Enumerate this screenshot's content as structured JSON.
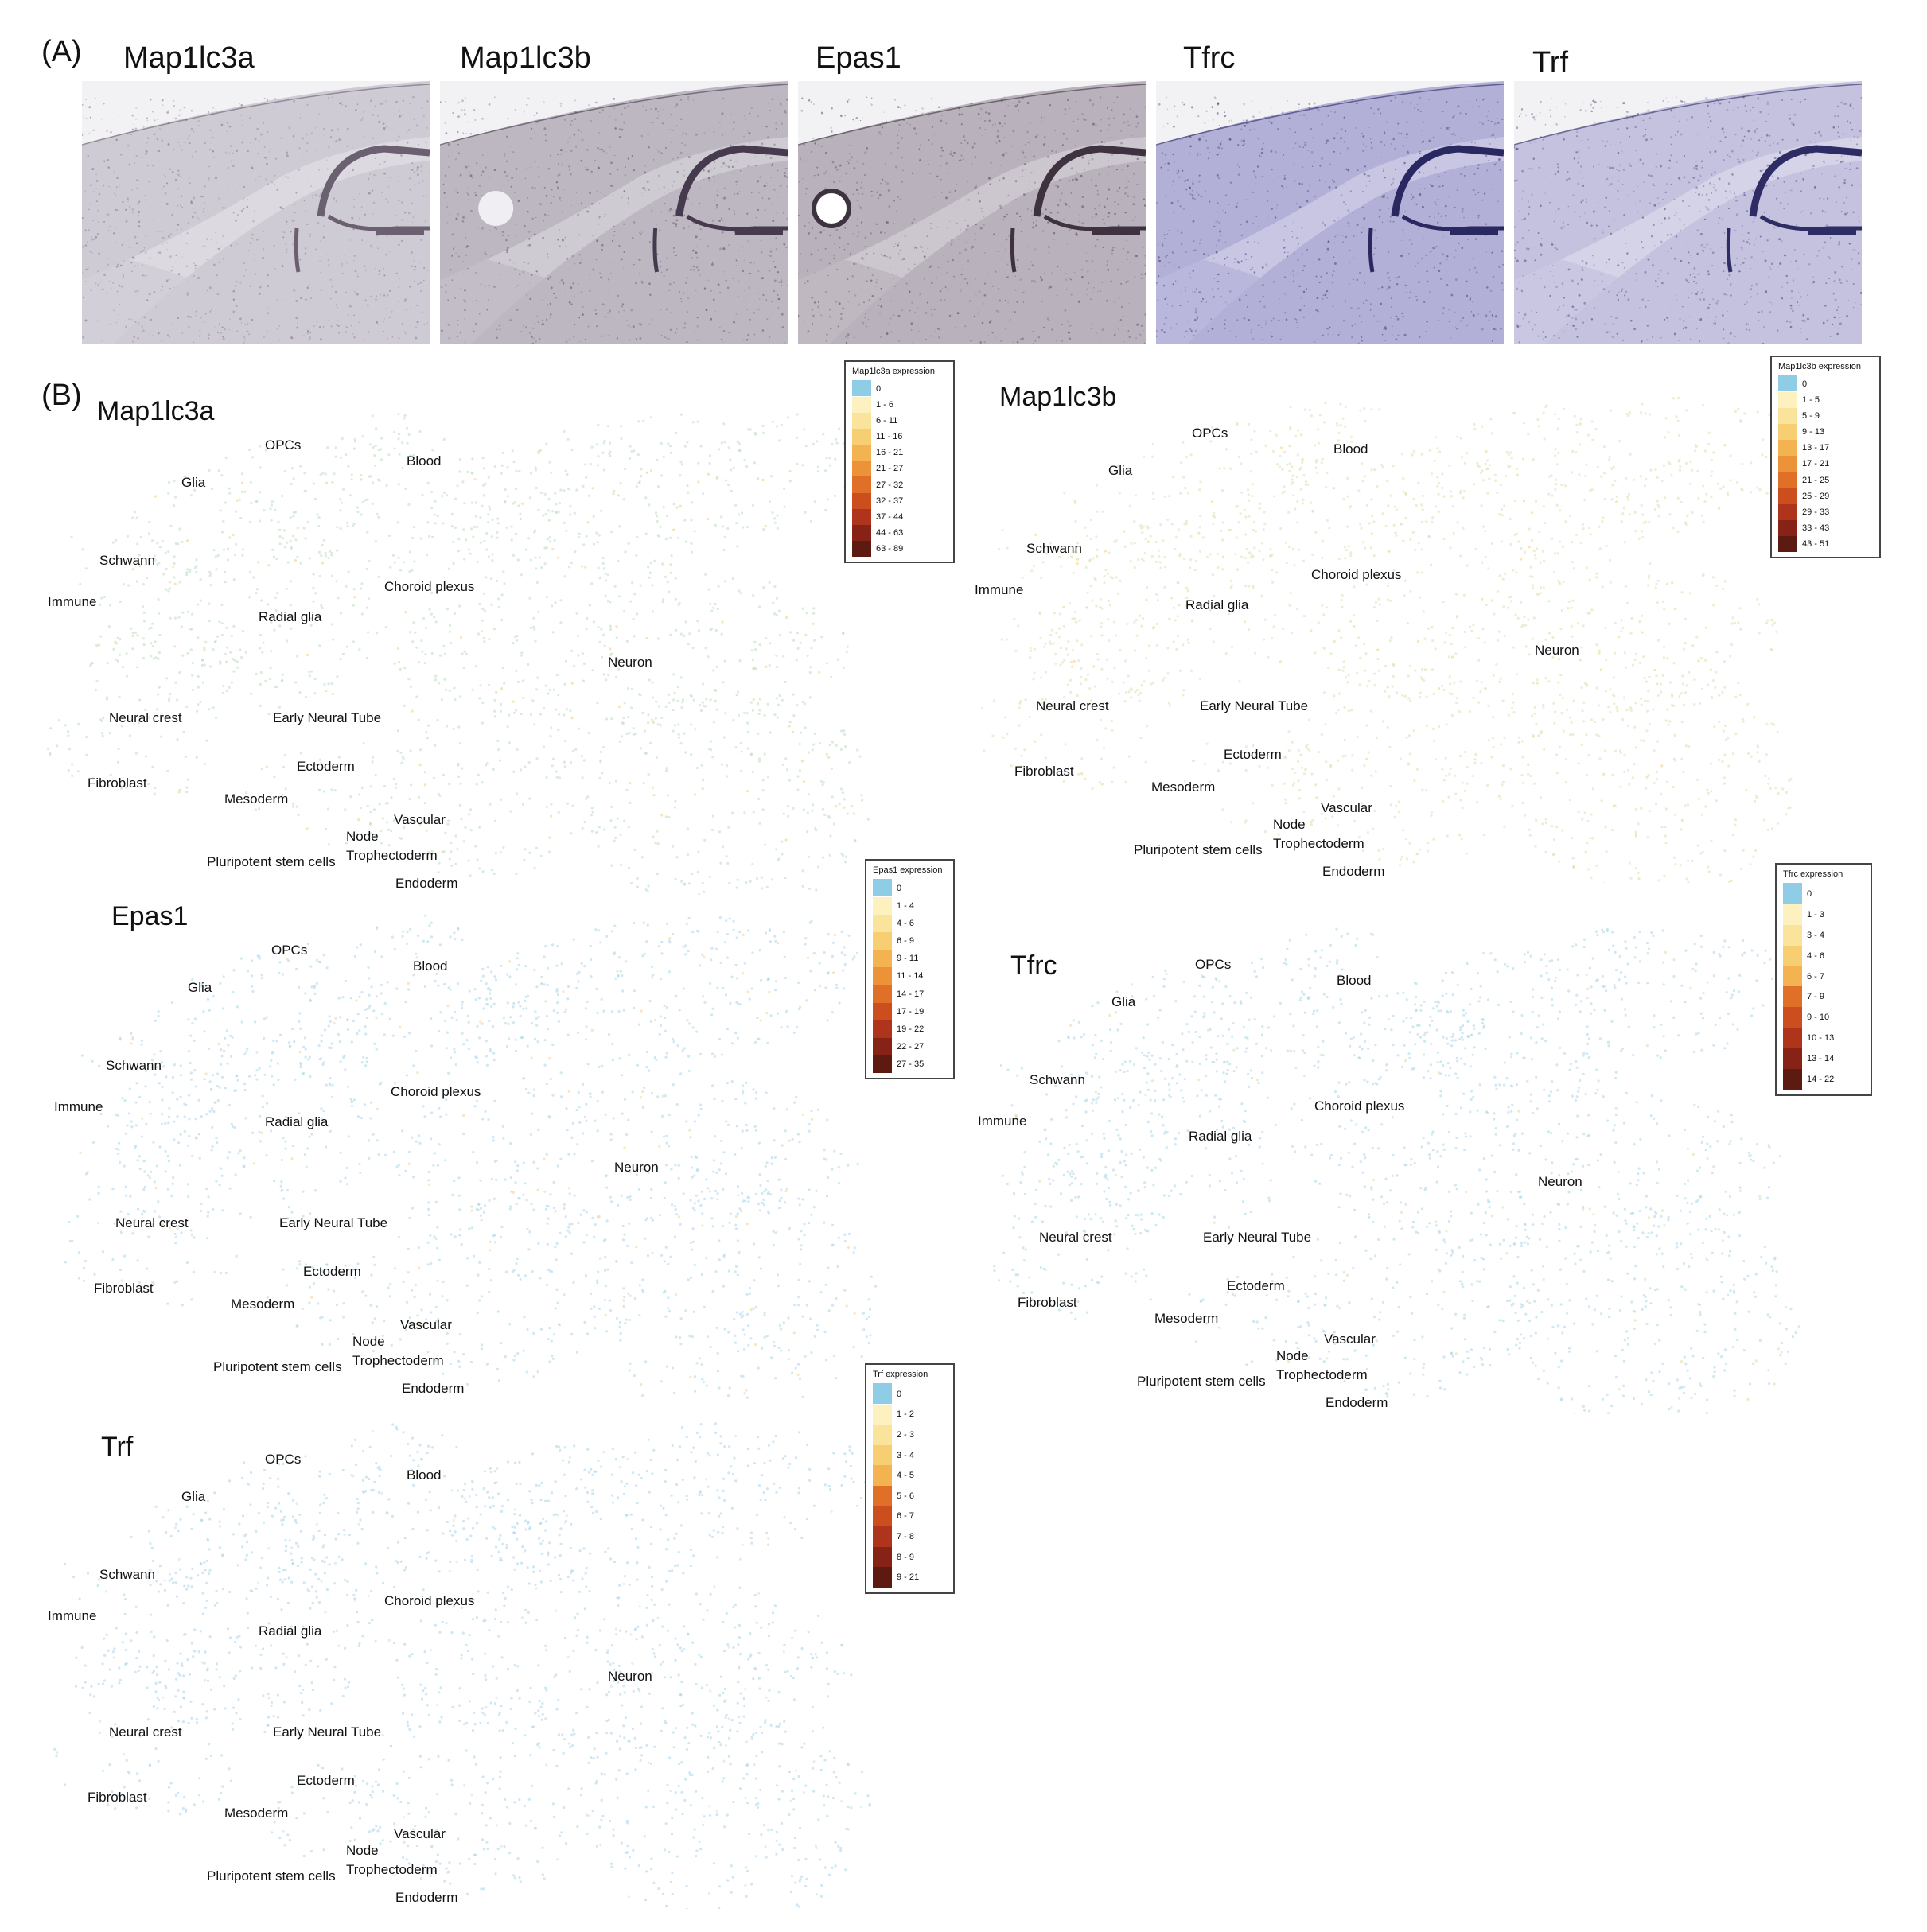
{
  "panel_a_label": "(A)",
  "panel_b_label": "(B)",
  "ish_images": [
    {
      "gene": "Map1lc3a",
      "tint": "#cfcbd4",
      "stain": "#6b6070"
    },
    {
      "gene": "Map1lc3b",
      "tint": "#bdb7c2",
      "stain": "#463a4e"
    },
    {
      "gene": "Epas1",
      "tint": "#b9b2bc",
      "stain": "#3e3240"
    },
    {
      "gene": "Tfrc",
      "tint": "#b3b0d8",
      "stain": "#2a2860"
    },
    {
      "gene": "Trf",
      "tint": "#c4c2de",
      "stain": "#2e2c64"
    }
  ],
  "cluster_labels": {
    "opcs": "OPCs",
    "blood": "Blood",
    "glia": "Glia",
    "schwann": "Schwann",
    "immune": "Immune",
    "choroid": "Choroid plexus",
    "radial": "Radial glia",
    "neuron": "Neuron",
    "neural_crest": "Neural crest",
    "early_tube": "Early Neural Tube",
    "ectoderm": "Ectoderm",
    "fibroblast": "Fibroblast",
    "mesoderm": "Mesoderm",
    "vascular": "Vascular",
    "node": "Node",
    "tropho": "Trophectoderm",
    "pluripotent": "Pluripotent stem cells",
    "endoderm": "Endoderm"
  },
  "maps": [
    {
      "gene": "Map1lc3a",
      "point_color": "#bcdcc0",
      "accent": "#f0d07a",
      "legend": {
        "title": "Map1lc3a expression",
        "bins": [
          "0",
          "1 - 6",
          "6 - 11",
          "11 - 16",
          "16 - 21",
          "21 - 27",
          "27 - 32",
          "32 - 37",
          "37 - 44",
          "44 - 63",
          "63 - 89"
        ]
      }
    },
    {
      "gene": "Map1lc3b",
      "point_color": "#d6e3b0",
      "accent": "#f2d27c",
      "legend": {
        "title": "Map1lc3b expression",
        "bins": [
          "0",
          "1 - 5",
          "5 - 9",
          "9 - 13",
          "13 - 17",
          "17 - 21",
          "21 - 25",
          "25 - 29",
          "29 - 33",
          "33 - 43",
          "43 - 51"
        ]
      }
    },
    {
      "gene": "Epas1",
      "point_color": "#a9d6ea",
      "accent": "#f1d18a",
      "legend": {
        "title": "Epas1 expression",
        "bins": [
          "0",
          "1 - 4",
          "4 - 6",
          "6 - 9",
          "9 - 11",
          "11 - 14",
          "14 - 17",
          "17 - 19",
          "19 - 22",
          "22 - 27",
          "27 - 35"
        ]
      }
    },
    {
      "gene": "Tfrc",
      "point_color": "#aad6e8",
      "accent": "#d9dc9e",
      "legend": {
        "title": "Tfrc expression",
        "bins": [
          "0",
          "1 - 3",
          "3 - 4",
          "4 - 6",
          "6 - 7",
          "7 - 9",
          "9 - 10",
          "10 - 13",
          "13 - 14",
          "14 - 22"
        ]
      }
    },
    {
      "gene": "Trf",
      "point_color": "#a8d4ea",
      "accent": "#cfe0d8",
      "legend": {
        "title": "Trf expression",
        "bins": [
          "0",
          "1 - 2",
          "2 - 3",
          "3 - 4",
          "4 - 5",
          "5 - 6",
          "6 - 7",
          "7 - 8",
          "8 - 9",
          "9 - 21"
        ]
      }
    }
  ],
  "legend_colors": [
    "#8fcde6",
    "#fdf1c0",
    "#fae39a",
    "#f7cf72",
    "#f2b350",
    "#ec9239",
    "#e06f27",
    "#cc4e1f",
    "#ae341b",
    "#862316",
    "#5c1a10"
  ]
}
